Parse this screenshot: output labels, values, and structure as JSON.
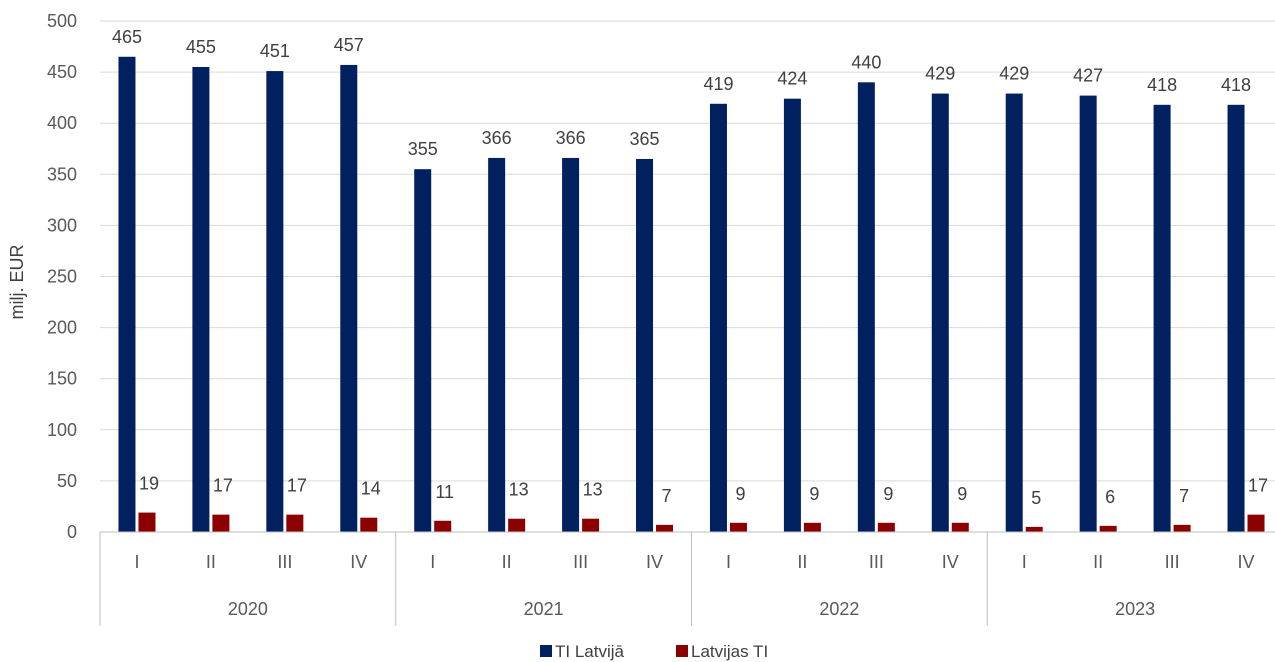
{
  "chart_data": {
    "type": "bar",
    "ylabel": "milj. EUR",
    "ylim": [
      0,
      500
    ],
    "yticks": [
      0,
      50,
      100,
      150,
      200,
      250,
      300,
      350,
      400,
      450,
      500
    ],
    "grid": true,
    "legend_position": "bottom",
    "groups": [
      {
        "label": "2020",
        "quarters": [
          "I",
          "II",
          "III",
          "IV"
        ]
      },
      {
        "label": "2021",
        "quarters": [
          "I",
          "II",
          "III",
          "IV"
        ]
      },
      {
        "label": "2022",
        "quarters": [
          "I",
          "II",
          "III",
          "IV"
        ]
      },
      {
        "label": "2023",
        "quarters": [
          "I",
          "II",
          "III",
          "IV"
        ]
      }
    ],
    "series": [
      {
        "name": "TI Latvijā",
        "color": "#002060",
        "values": [
          465,
          455,
          451,
          457,
          355,
          366,
          366,
          365,
          419,
          424,
          440,
          429,
          429,
          427,
          418,
          418
        ]
      },
      {
        "name": "Latvijas TI",
        "color": "#8B0000",
        "values": [
          19,
          17,
          17,
          14,
          11,
          13,
          13,
          7,
          9,
          9,
          9,
          9,
          5,
          6,
          7,
          17
        ]
      }
    ]
  }
}
